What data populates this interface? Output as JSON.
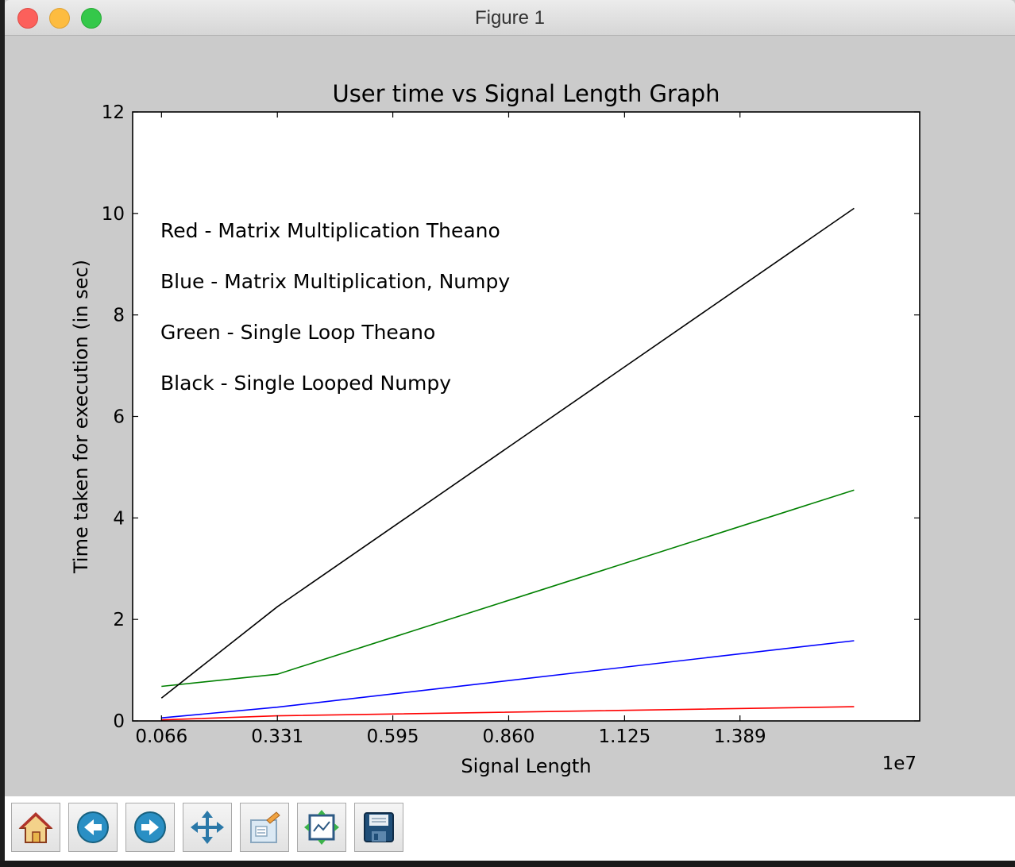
{
  "window": {
    "title": "Figure 1"
  },
  "toolbar": {
    "buttons": [
      {
        "icon": "home-icon"
      },
      {
        "icon": "back-icon"
      },
      {
        "icon": "forward-icon"
      },
      {
        "icon": "pan-icon"
      },
      {
        "icon": "zoom-icon"
      },
      {
        "icon": "subplots-icon"
      },
      {
        "icon": "save-icon"
      }
    ]
  },
  "chart_data": {
    "type": "line",
    "title": "User time vs Signal Length Graph",
    "xlabel": "Signal Length",
    "ylabel": "Time taken for execution (in sec)",
    "x_offset_text": "1e7",
    "x": [
      0.066,
      0.331,
      1.65
    ],
    "xlim": [
      0.0,
      1.8
    ],
    "ylim": [
      0,
      12
    ],
    "xtick_values": [
      0.066,
      0.331,
      0.595,
      0.86,
      1.125,
      1.389
    ],
    "xtick_labels": [
      "0.066",
      "0.331",
      "0.595",
      "0.860",
      "1.125",
      "1.389"
    ],
    "ytick_values": [
      0,
      2,
      4,
      6,
      8,
      10,
      12
    ],
    "ytick_labels": [
      "0",
      "2",
      "4",
      "6",
      "8",
      "10",
      "12"
    ],
    "grid": false,
    "series": [
      {
        "color": "#ff0000",
        "values": [
          0.02,
          0.1,
          0.28
        ]
      },
      {
        "color": "#0000ff",
        "values": [
          0.06,
          0.27,
          1.58
        ]
      },
      {
        "color": "#008000",
        "values": [
          0.68,
          0.92,
          4.55
        ]
      },
      {
        "color": "#000000",
        "values": [
          0.45,
          2.25,
          10.1
        ]
      }
    ],
    "annotations": [
      "Red - Matrix Multiplication Theano",
      "Blue - Matrix Multiplication, Numpy",
      "Green - Single Loop Theano",
      "Black - Single Looped Numpy"
    ]
  }
}
